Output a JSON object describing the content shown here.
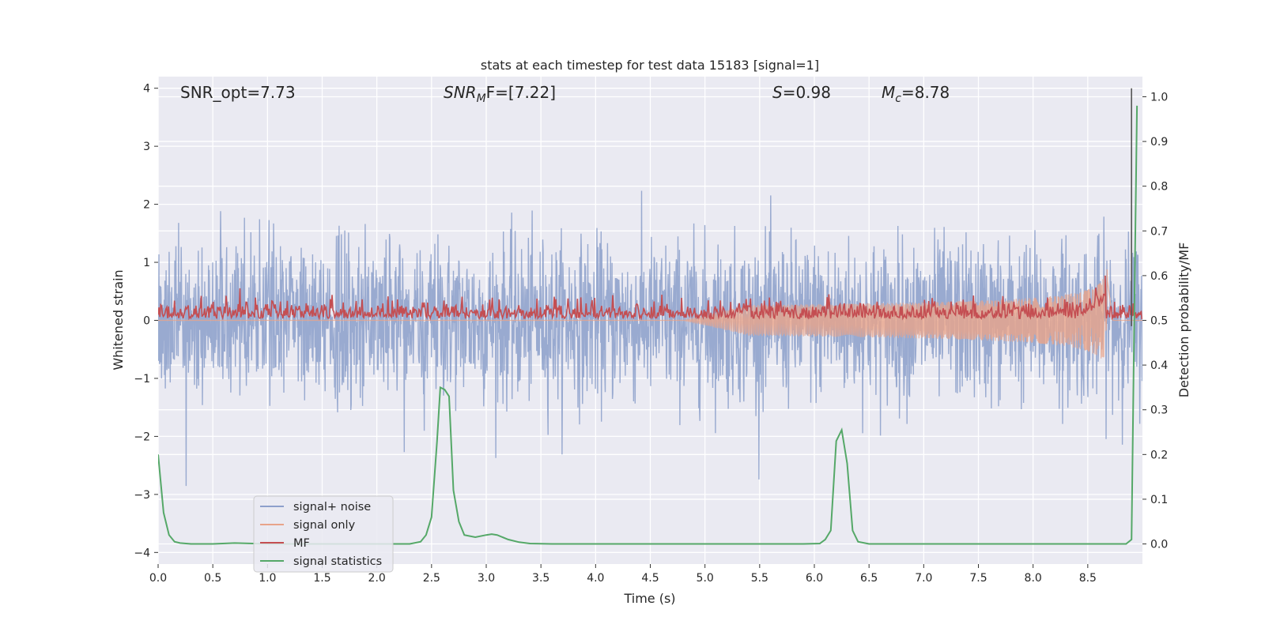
{
  "chart_data": {
    "type": "line",
    "title": "stats at each timestep for test data 15183 [signal=1]",
    "xlabel": "Time (s)",
    "ylabel": "Whitened strain",
    "y2label": "Detection probability/MF",
    "xlim": [
      0.0,
      9.0
    ],
    "ylim": [
      -4.2,
      4.2
    ],
    "y2lim": [
      -0.045,
      1.045
    ],
    "xticks": [
      0.0,
      0.5,
      1.0,
      1.5,
      2.0,
      2.5,
      3.0,
      3.5,
      4.0,
      4.5,
      5.0,
      5.5,
      6.0,
      6.5,
      7.0,
      7.5,
      8.0,
      8.5
    ],
    "xtick_labels": [
      "0.0",
      "0.5",
      "1.0",
      "1.5",
      "2.0",
      "2.5",
      "3.0",
      "3.5",
      "4.0",
      "4.5",
      "5.0",
      "5.5",
      "6.0",
      "6.5",
      "7.0",
      "7.5",
      "8.0",
      "8.5"
    ],
    "yticks": [
      4,
      3,
      2,
      1,
      0,
      -1,
      -2,
      -3,
      -4
    ],
    "ytick_labels": [
      "4",
      "3",
      "2",
      "1",
      "0",
      "−1",
      "−2",
      "−3",
      "−4"
    ],
    "y2ticks": [
      1.0,
      0.9,
      0.8,
      0.7,
      0.6,
      0.5,
      0.4,
      0.3,
      0.2,
      0.1,
      0.0
    ],
    "y2tick_labels": [
      "1.0",
      "0.9",
      "0.8",
      "0.7",
      "0.6",
      "0.5",
      "0.4",
      "0.3",
      "0.2",
      "0.1",
      "0.0"
    ],
    "grid": true,
    "legend_position": "lower-left",
    "annotations": {
      "snr_opt": "SNR_opt=7.73",
      "snr_mf_main": "SNR",
      "snr_mf_sub": "M",
      "snr_mf_rest": "F=[7.22]",
      "s_main": "S",
      "s_rest": "=0.98",
      "mc_main": "M",
      "mc_sub": "c",
      "mc_rest": "=8.78"
    },
    "series": [
      {
        "name": "signal+ noise",
        "axis": "left",
        "color": "#8da0cb",
        "noise_envelope": {
          "typical_min": -1.5,
          "typical_max": 1.5,
          "peak_max": 4.0,
          "peak_min": -3.7
        }
      },
      {
        "name": "signal only",
        "axis": "left",
        "color": "#e8a48a",
        "chirp": {
          "start_x": 4.8,
          "end_x": 8.68,
          "max_amplitude": 1.0
        }
      },
      {
        "name": "MF",
        "axis": "right",
        "color": "#c44e52",
        "baseline": 0.5,
        "peak": {
          "x": 8.66,
          "y": 0.6
        }
      },
      {
        "name": "signal statistics",
        "axis": "right",
        "color": "#55a868",
        "x": [
          0.0,
          0.05,
          0.1,
          0.15,
          0.2,
          0.3,
          0.5,
          0.7,
          1.0,
          1.5,
          2.0,
          2.3,
          2.4,
          2.45,
          2.5,
          2.55,
          2.58,
          2.62,
          2.66,
          2.7,
          2.75,
          2.8,
          2.9,
          3.0,
          3.05,
          3.1,
          3.2,
          3.3,
          3.4,
          3.6,
          4.0,
          5.0,
          5.9,
          6.05,
          6.1,
          6.15,
          6.2,
          6.25,
          6.3,
          6.35,
          6.4,
          6.5,
          7.0,
          8.0,
          8.85,
          8.9,
          8.93,
          8.95
        ],
        "values": [
          0.2,
          0.07,
          0.02,
          0.005,
          0.002,
          0.0,
          0.0,
          0.002,
          0.0,
          0.0,
          0.0,
          0.0,
          0.005,
          0.02,
          0.06,
          0.23,
          0.35,
          0.345,
          0.33,
          0.12,
          0.05,
          0.02,
          0.015,
          0.02,
          0.022,
          0.02,
          0.01,
          0.004,
          0.001,
          0.0,
          0.0,
          0.0,
          0.0,
          0.001,
          0.01,
          0.03,
          0.23,
          0.255,
          0.18,
          0.03,
          0.005,
          0.0,
          0.0,
          0.0,
          0.0,
          0.01,
          0.6,
          0.98
        ]
      }
    ]
  }
}
